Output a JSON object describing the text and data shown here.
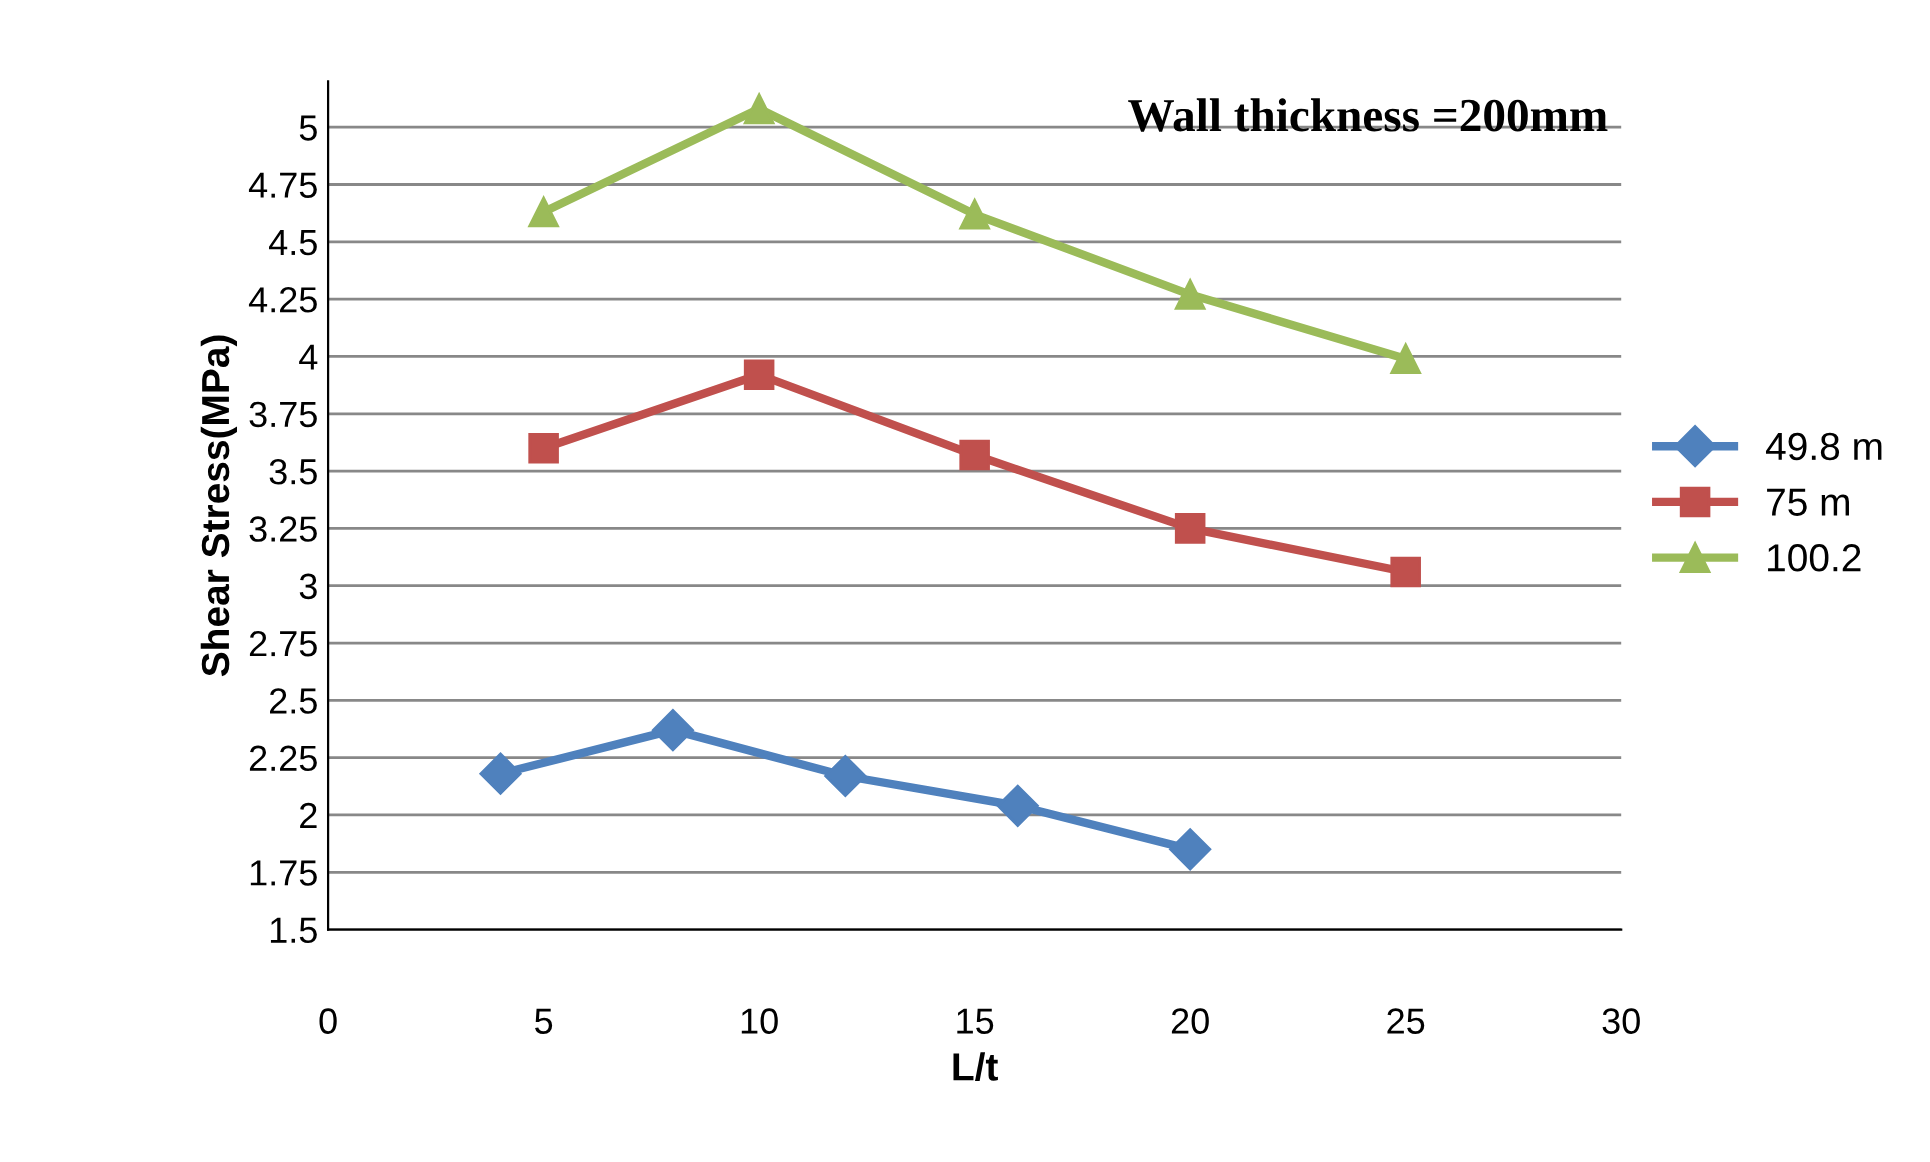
{
  "chart_data": {
    "type": "line",
    "xlabel": "L/t",
    "ylabel": "Shear Stress(MPa)",
    "annotations": [
      "Wall thickness =200mm"
    ],
    "xlim": [
      0,
      30
    ],
    "xticks": [
      0,
      5,
      10,
      15,
      20,
      25,
      30
    ],
    "ylim": [
      1.5,
      5.2
    ],
    "yticks": [
      1.5,
      1.75,
      2,
      2.25,
      2.5,
      2.75,
      3,
      3.25,
      3.5,
      3.75,
      4,
      4.25,
      4.5,
      4.75,
      5
    ],
    "grid": "y",
    "legend": "right",
    "line_style": "solid",
    "series": [
      {
        "name": "49.8 m",
        "color": "#4f81bd",
        "marker": "diamond",
        "x": [
          4,
          8,
          12,
          16,
          20
        ],
        "values": [
          2.18,
          2.37,
          2.17,
          2.04,
          1.85
        ]
      },
      {
        "name": "75 m",
        "color": "#c0504d",
        "marker": "square",
        "x": [
          5,
          10,
          15,
          20,
          25
        ],
        "values": [
          3.6,
          3.92,
          3.57,
          3.25,
          3.06
        ]
      },
      {
        "name": "100.2",
        "color": "#9bbb59",
        "marker": "triangle",
        "x": [
          5,
          10,
          15,
          20,
          25
        ],
        "values": [
          4.63,
          5.08,
          4.62,
          4.27,
          3.99
        ]
      }
    ]
  }
}
